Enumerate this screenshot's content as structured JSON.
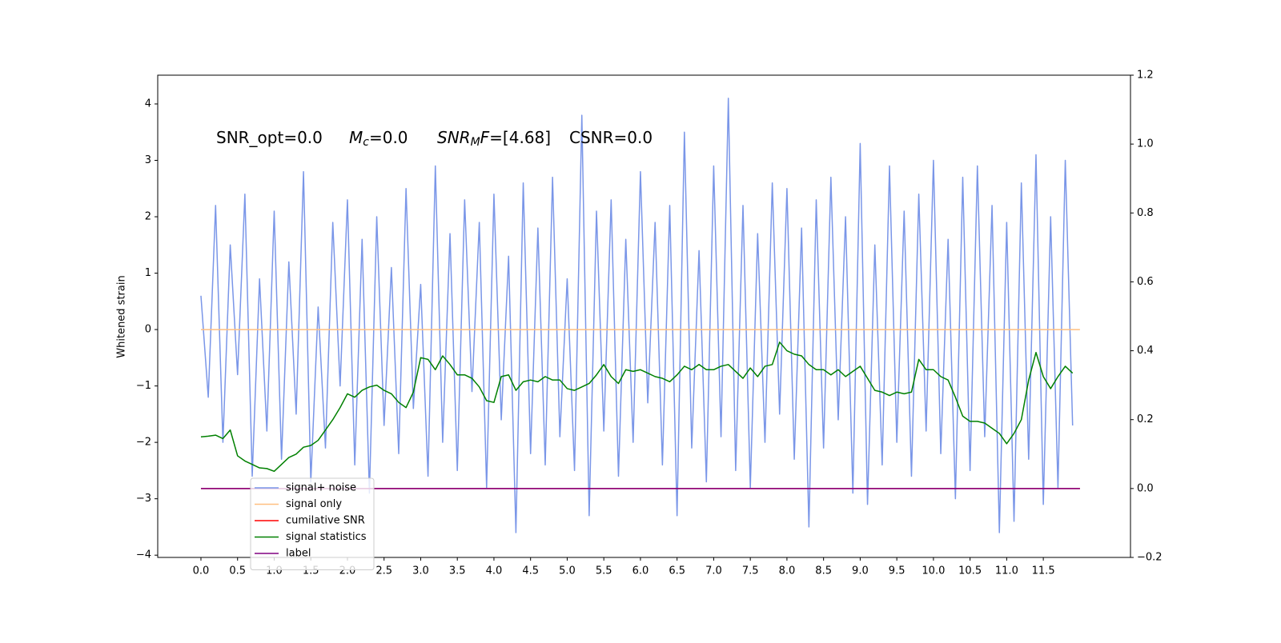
{
  "chart_data": {
    "type": "line",
    "ylabel": "Whitened strain",
    "annotations": [
      [
        {
          "text": "SNR_opt=0.0"
        }
      ],
      [
        {
          "text": "M",
          "italic": true
        },
        {
          "text": "c",
          "italic": true,
          "sub": true
        },
        {
          "text": "=0.0"
        }
      ],
      [
        {
          "text": "SNR",
          "italic": true
        },
        {
          "text": "M",
          "italic": true,
          "sub": true
        },
        {
          "text": "F",
          "italic": true
        },
        {
          "text": "=[4.68]"
        }
      ],
      [
        {
          "text": "CSNR=0.0"
        }
      ]
    ],
    "x": [
      0.0,
      0.1,
      0.2,
      0.3,
      0.4,
      0.5,
      0.6,
      0.7,
      0.8,
      0.9,
      1.0,
      1.1,
      1.2,
      1.3,
      1.4,
      1.5,
      1.6,
      1.7,
      1.8,
      1.9,
      2.0,
      2.1,
      2.2,
      2.3,
      2.4,
      2.5,
      2.6,
      2.7,
      2.8,
      2.9,
      3.0,
      3.1,
      3.2,
      3.3,
      3.4,
      3.5,
      3.6,
      3.7,
      3.8,
      3.9,
      4.0,
      4.1,
      4.2,
      4.3,
      4.4,
      4.5,
      4.6,
      4.7,
      4.8,
      4.9,
      5.0,
      5.1,
      5.2,
      5.3,
      5.4,
      5.5,
      5.6,
      5.7,
      5.8,
      5.9,
      6.0,
      6.1,
      6.2,
      6.3,
      6.4,
      6.5,
      6.6,
      6.7,
      6.8,
      6.9,
      7.0,
      7.1,
      7.2,
      7.3,
      7.4,
      7.5,
      7.6,
      7.7,
      7.8,
      7.9,
      8.0,
      8.1,
      8.2,
      8.3,
      8.4,
      8.5,
      8.6,
      8.7,
      8.8,
      8.9,
      9.0,
      9.1,
      9.2,
      9.3,
      9.4,
      9.5,
      9.6,
      9.7,
      9.8,
      9.9,
      10.0,
      10.1,
      10.2,
      10.3,
      10.4,
      10.5,
      10.6,
      10.7,
      10.8,
      10.9,
      11.0,
      11.1,
      11.2,
      11.3,
      11.4,
      11.5,
      11.6,
      11.7,
      11.8,
      11.9
    ],
    "series": [
      {
        "name": "signal+ noise",
        "color": "#7a96e8",
        "values": [
          0.6,
          -1.2,
          2.2,
          -2.0,
          1.5,
          -0.8,
          2.4,
          -2.6,
          0.9,
          -1.8,
          2.1,
          -2.3,
          1.2,
          -1.5,
          2.8,
          -2.7,
          0.4,
          -2.1,
          1.9,
          -1.0,
          2.3,
          -2.4,
          1.6,
          -2.9,
          2.0,
          -1.7,
          1.1,
          -2.2,
          2.5,
          -1.4,
          0.8,
          -2.6,
          2.9,
          -2.0,
          1.7,
          -2.5,
          2.3,
          -1.1,
          1.9,
          -2.8,
          2.4,
          -1.6,
          1.3,
          -3.6,
          2.6,
          -2.2,
          1.8,
          -2.4,
          2.7,
          -1.9,
          0.9,
          -2.5,
          3.8,
          -3.3,
          2.1,
          -1.8,
          2.3,
          -2.6,
          1.6,
          -2.0,
          2.8,
          -1.3,
          1.9,
          -2.4,
          2.2,
          -3.3,
          3.5,
          -2.1,
          1.4,
          -2.7,
          2.9,
          -1.9,
          4.1,
          -2.5,
          2.2,
          -2.8,
          1.7,
          -2.0,
          2.6,
          -1.5,
          2.5,
          -2.3,
          1.8,
          -3.5,
          2.3,
          -2.1,
          2.7,
          -1.6,
          2.0,
          -2.9,
          3.3,
          -3.1,
          1.5,
          -2.4,
          2.9,
          -2.0,
          2.1,
          -2.6,
          2.4,
          -1.8,
          3.0,
          -2.2,
          1.6,
          -3.0,
          2.7,
          -2.5,
          2.9,
          -1.9,
          2.2,
          -3.6,
          1.9,
          -3.4,
          2.6,
          -2.3,
          3.1,
          -3.1,
          2.0,
          -2.8,
          3.0,
          -1.7
        ]
      },
      {
        "name": "signal only",
        "color": "#ffbf80",
        "x": [
          0,
          12
        ],
        "values": [
          0,
          0
        ]
      },
      {
        "name": "cumilative SNR",
        "color": "#ff0000",
        "axis": "y2",
        "x": [
          0,
          12
        ],
        "values": [
          0,
          0
        ]
      },
      {
        "name": "signal statistics",
        "color": "#008000",
        "axis": "y2",
        "values": [
          0.15,
          0.152,
          0.155,
          0.145,
          0.17,
          0.095,
          0.08,
          0.07,
          0.06,
          0.058,
          0.05,
          0.07,
          0.09,
          0.1,
          0.12,
          0.125,
          0.14,
          0.17,
          0.2,
          0.235,
          0.275,
          0.265,
          0.285,
          0.295,
          0.3,
          0.285,
          0.275,
          0.25,
          0.235,
          0.28,
          0.38,
          0.375,
          0.345,
          0.385,
          0.36,
          0.33,
          0.33,
          0.32,
          0.295,
          0.255,
          0.25,
          0.325,
          0.33,
          0.285,
          0.31,
          0.315,
          0.31,
          0.325,
          0.315,
          0.315,
          0.29,
          0.285,
          0.295,
          0.305,
          0.33,
          0.36,
          0.325,
          0.305,
          0.345,
          0.34,
          0.345,
          0.335,
          0.325,
          0.32,
          0.31,
          0.33,
          0.355,
          0.345,
          0.36,
          0.345,
          0.345,
          0.355,
          0.36,
          0.34,
          0.32,
          0.35,
          0.325,
          0.355,
          0.36,
          0.425,
          0.4,
          0.39,
          0.385,
          0.36,
          0.345,
          0.345,
          0.33,
          0.345,
          0.325,
          0.34,
          0.355,
          0.32,
          0.285,
          0.28,
          0.27,
          0.28,
          0.275,
          0.28,
          0.375,
          0.345,
          0.345,
          0.325,
          0.315,
          0.265,
          0.21,
          0.195,
          0.195,
          0.19,
          0.175,
          0.16,
          0.13,
          0.16,
          0.2,
          0.315,
          0.395,
          0.325,
          0.29,
          0.325,
          0.355,
          0.335
        ]
      },
      {
        "name": "label",
        "color": "#800080",
        "axis": "y2",
        "x": [
          0,
          12
        ],
        "values": [
          0,
          0
        ]
      }
    ],
    "xlim": [
      -0.59,
      12.69
    ],
    "xticks": [
      {
        "value": 0,
        "label": "0.0"
      },
      0.5,
      {
        "value": 1,
        "label": "1.0"
      },
      1.5,
      {
        "value": 2,
        "label": "2.0"
      },
      2.5,
      {
        "value": 3,
        "label": "3.0"
      },
      3.5,
      {
        "value": 4,
        "label": "4.0"
      },
      4.5,
      {
        "value": 5,
        "label": "5.0"
      },
      5.5,
      {
        "value": 6,
        "label": "6.0"
      },
      6.5,
      {
        "value": 7,
        "label": "7.0"
      },
      7.5,
      {
        "value": 8,
        "label": "8.0"
      },
      8.5,
      {
        "value": 9,
        "label": "9.0"
      },
      9.5,
      {
        "value": 10,
        "label": "10.0"
      },
      10.5,
      {
        "value": 11,
        "label": "11.0"
      },
      11.5
    ],
    "ylim": [
      -4.04,
      4.51
    ],
    "yticks": [
      {
        "value": -4,
        "label": "−4"
      },
      {
        "value": -3,
        "label": "−3"
      },
      {
        "value": -2,
        "label": "−2"
      },
      {
        "value": -1,
        "label": "−1"
      },
      0,
      1,
      2,
      3,
      4
    ],
    "y2lim": [
      -0.2,
      1.2
    ],
    "y2ticks": [
      {
        "value": -0.2,
        "label": "−0.2"
      },
      {
        "value": 0,
        "label": "0.0"
      },
      0.2,
      0.4,
      0.6,
      0.8,
      {
        "value": 1,
        "label": "1.0"
      },
      1.2
    ],
    "legend": "lower left"
  }
}
